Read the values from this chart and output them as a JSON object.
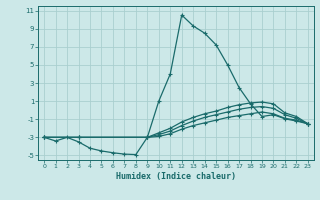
{
  "xlabel": "Humidex (Indice chaleur)",
  "bg_color": "#cce8e8",
  "grid_color": "#aacfcf",
  "line_color": "#1a6b6b",
  "xlim": [
    -0.5,
    23.5
  ],
  "ylim": [
    -5.5,
    11.5
  ],
  "xticks": [
    0,
    1,
    2,
    3,
    4,
    5,
    6,
    7,
    8,
    9,
    10,
    11,
    12,
    13,
    14,
    15,
    16,
    17,
    18,
    19,
    20,
    21,
    22,
    23
  ],
  "yticks": [
    -5,
    -3,
    -1,
    1,
    3,
    5,
    7,
    9,
    11
  ],
  "line1_x": [
    0,
    1,
    2,
    3,
    4,
    5,
    6,
    7,
    8,
    9,
    10,
    11,
    12,
    13,
    14,
    15,
    16,
    17,
    18,
    19,
    20,
    21,
    22,
    23
  ],
  "line1_y": [
    -3,
    -3.4,
    -3.0,
    -3.5,
    -4.2,
    -4.5,
    -4.7,
    -4.85,
    -4.9,
    -3.0,
    1.0,
    4.0,
    10.5,
    9.3,
    8.5,
    7.2,
    5.0,
    2.5,
    0.7,
    -0.7,
    -0.5,
    -0.95,
    -1.2,
    -1.5
  ],
  "line2_x": [
    0,
    3,
    9,
    10,
    11,
    12,
    13,
    14,
    15,
    16,
    17,
    18,
    19,
    20,
    21,
    22,
    23
  ],
  "line2_y": [
    -3,
    -3.0,
    -3.0,
    -2.5,
    -2.0,
    -1.3,
    -0.8,
    -0.4,
    -0.1,
    0.3,
    0.6,
    0.8,
    0.9,
    0.7,
    -0.3,
    -0.7,
    -1.5
  ],
  "line3_x": [
    0,
    3,
    9,
    10,
    11,
    12,
    13,
    14,
    15,
    16,
    17,
    18,
    19,
    20,
    21,
    22,
    23
  ],
  "line3_y": [
    -3,
    -3.0,
    -3.0,
    -2.7,
    -2.3,
    -1.7,
    -1.2,
    -0.8,
    -0.5,
    -0.2,
    0.1,
    0.3,
    0.4,
    0.2,
    -0.5,
    -0.9,
    -1.5
  ],
  "line4_x": [
    0,
    3,
    9,
    10,
    11,
    12,
    13,
    14,
    15,
    16,
    17,
    18,
    19,
    20,
    21,
    22,
    23
  ],
  "line4_y": [
    -3,
    -3.0,
    -3.0,
    -2.9,
    -2.6,
    -2.1,
    -1.7,
    -1.4,
    -1.1,
    -0.8,
    -0.6,
    -0.4,
    -0.2,
    -0.4,
    -0.9,
    -1.1,
    -1.5
  ]
}
